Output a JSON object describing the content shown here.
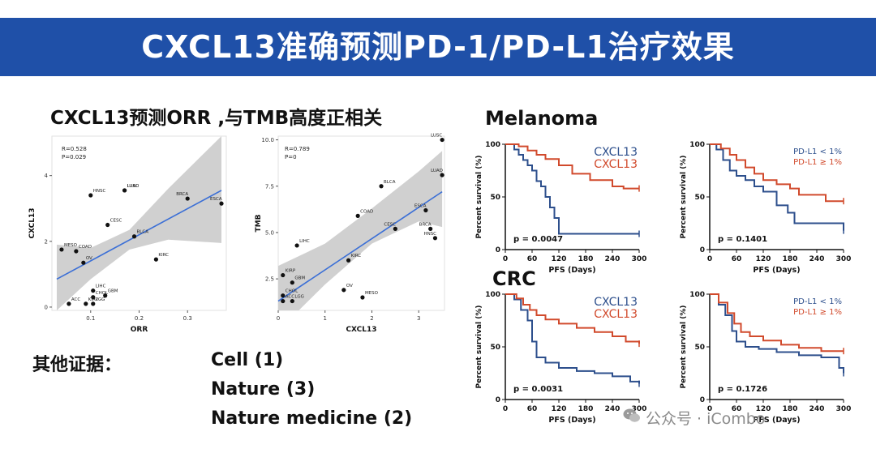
{
  "title": "CXCL13准确预测PD-1/PD-L1治疗效果",
  "subtitle": "CXCL13预测ORR ,与TMB高度正相关",
  "other_evidence": {
    "label": "其他证据：",
    "items": [
      "Cell (1)",
      "Nature (3)",
      "Nature medicine (2)"
    ]
  },
  "sections": {
    "melanoma": "Melanoma",
    "crc": "CRC"
  },
  "watermark": "公众号 · iCombo",
  "colors": {
    "banner": "#1f50a8",
    "blue": "#2d4f8c",
    "red": "#d14a2c",
    "band": "#d0d0d0",
    "fit": "#3b6fd6"
  },
  "chart_data": [
    {
      "type": "scatter",
      "xlabel": "ORR",
      "ylabel": "CXCL13",
      "xlim": [
        0.02,
        0.38
      ],
      "ylim": [
        -0.1,
        5.2
      ],
      "xticks": [
        "0.1",
        "0.2",
        "0.3"
      ],
      "xtick_values": [
        0.1,
        0.2,
        0.3
      ],
      "yticks": [
        "0",
        "2",
        "4"
      ],
      "ytick_values": [
        0,
        2,
        4
      ],
      "annotations": [
        "R=0.528",
        "P=0.029"
      ],
      "fit_line": [
        [
          0.03,
          0.85
        ],
        [
          0.37,
          3.55
        ]
      ],
      "band_upper": [
        [
          0.03,
          1.9
        ],
        [
          0.1,
          1.8
        ],
        [
          0.18,
          2.35
        ],
        [
          0.26,
          3.6
        ],
        [
          0.37,
          5.2
        ]
      ],
      "band_lower": [
        [
          0.03,
          -0.1
        ],
        [
          0.1,
          0.85
        ],
        [
          0.18,
          1.75
        ],
        [
          0.26,
          2.05
        ],
        [
          0.37,
          1.95
        ]
      ],
      "points": [
        {
          "label": "LUAD",
          "x": 0.17,
          "y": 3.55
        },
        {
          "label": "HNSC",
          "x": 0.1,
          "y": 3.4
        },
        {
          "label": "LUSC",
          "x": 0.17,
          "y": 3.55
        },
        {
          "label": "BRCA",
          "x": 0.3,
          "y": 3.3
        },
        {
          "label": "ESCA",
          "x": 0.37,
          "y": 3.15
        },
        {
          "label": "CESC",
          "x": 0.135,
          "y": 2.5
        },
        {
          "label": "MESO",
          "x": 0.04,
          "y": 1.75
        },
        {
          "label": "COAD",
          "x": 0.07,
          "y": 1.7
        },
        {
          "label": "BLCA",
          "x": 0.19,
          "y": 2.15
        },
        {
          "label": "KIRC",
          "x": 0.235,
          "y": 1.45
        },
        {
          "label": "OV",
          "x": 0.085,
          "y": 1.35
        },
        {
          "label": "LIHC",
          "x": 0.105,
          "y": 0.5
        },
        {
          "label": "GBM",
          "x": 0.13,
          "y": 0.35
        },
        {
          "label": "CHOL",
          "x": 0.105,
          "y": 0.3
        },
        {
          "label": "ACC",
          "x": 0.055,
          "y": 0.1
        },
        {
          "label": "KIRP",
          "x": 0.09,
          "y": 0.1
        },
        {
          "label": "LGG",
          "x": 0.105,
          "y": 0.1
        }
      ]
    },
    {
      "type": "scatter",
      "xlabel": "CXCL13",
      "ylabel": "TMB",
      "xlim": [
        0,
        3.55
      ],
      "ylim": [
        0.8,
        10.2
      ],
      "xticks": [
        "0",
        "1",
        "2",
        "3"
      ],
      "xtick_values": [
        0,
        1,
        2,
        3
      ],
      "yticks": [
        "2.5",
        "5.0",
        "7.5",
        "10.0"
      ],
      "ytick_values": [
        2.5,
        5.0,
        7.5,
        10.0
      ],
      "annotations": [
        "R=0.789",
        "P=0"
      ],
      "fit_line": [
        [
          0,
          1.3
        ],
        [
          3.5,
          7.2
        ]
      ],
      "band_upper": [
        [
          0,
          3.2
        ],
        [
          1.0,
          4.4
        ],
        [
          2.0,
          6.3
        ],
        [
          3.0,
          8.3
        ],
        [
          3.5,
          9.4
        ]
      ],
      "band_lower": [
        [
          0,
          -0.3
        ],
        [
          1.0,
          2.2
        ],
        [
          2.0,
          4.4
        ],
        [
          3.0,
          5.6
        ],
        [
          3.5,
          5.3
        ]
      ],
      "points": [
        {
          "label": "LUSC",
          "x": 3.5,
          "y": 10.0
        },
        {
          "label": "LUAD",
          "x": 3.5,
          "y": 8.1
        },
        {
          "label": "BLCA",
          "x": 2.2,
          "y": 7.5
        },
        {
          "label": "ESCA",
          "x": 3.15,
          "y": 6.2
        },
        {
          "label": "COAD",
          "x": 1.7,
          "y": 5.9
        },
        {
          "label": "CESC",
          "x": 2.5,
          "y": 5.2
        },
        {
          "label": "BRCA",
          "x": 3.25,
          "y": 5.2
        },
        {
          "label": "HNSC",
          "x": 3.35,
          "y": 4.7
        },
        {
          "label": "LIHC",
          "x": 0.4,
          "y": 4.3
        },
        {
          "label": "KIRP",
          "x": 0.1,
          "y": 2.7
        },
        {
          "label": "KIRC",
          "x": 1.5,
          "y": 3.5
        },
        {
          "label": "GBM",
          "x": 0.3,
          "y": 2.3
        },
        {
          "label": "OV",
          "x": 1.4,
          "y": 1.9
        },
        {
          "label": "CHOL",
          "x": 0.1,
          "y": 1.6
        },
        {
          "label": "LGG",
          "x": 0.3,
          "y": 1.3
        },
        {
          "label": "MESO",
          "x": 1.8,
          "y": 1.5
        },
        {
          "label": "ACC",
          "x": 0.1,
          "y": 1.3
        }
      ]
    },
    {
      "type": "line",
      "subtype": "kaplan-meier",
      "xlabel": "PFS (Days)",
      "ylabel": "Percent survival (%)",
      "xlim": [
        0,
        300
      ],
      "ylim": [
        0,
        100
      ],
      "xticks": [
        "0",
        "60",
        "120",
        "180",
        "240",
        "300"
      ],
      "xtick_values": [
        0,
        60,
        120,
        180,
        240,
        300
      ],
      "yticks": [
        "0",
        "50",
        "100"
      ],
      "ytick_values": [
        0,
        50,
        100
      ],
      "pvalue": "p = 0.0047",
      "legend": "top-right",
      "series": [
        {
          "name": "CXCL13",
          "color": "#2d4f8c",
          "x": [
            0,
            20,
            30,
            40,
            50,
            60,
            70,
            80,
            90,
            100,
            110,
            120,
            300
          ],
          "y": [
            100,
            95,
            90,
            85,
            80,
            75,
            65,
            60,
            50,
            40,
            30,
            15,
            15
          ]
        },
        {
          "name": "CXCL13",
          "color": "#d14a2c",
          "x": [
            0,
            30,
            50,
            70,
            90,
            120,
            150,
            190,
            240,
            265,
            300
          ],
          "y": [
            100,
            98,
            94,
            90,
            86,
            80,
            72,
            66,
            60,
            58,
            58
          ]
        }
      ]
    },
    {
      "type": "line",
      "subtype": "kaplan-meier",
      "xlabel": "PFS (Days)",
      "ylabel": "Percent survival (%)",
      "xlim": [
        0,
        300
      ],
      "ylim": [
        0,
        100
      ],
      "xticks": [
        "0",
        "60",
        "120",
        "180",
        "240",
        "300"
      ],
      "xtick_values": [
        0,
        60,
        120,
        180,
        240,
        300
      ],
      "yticks": [
        "0",
        "50",
        "100"
      ],
      "ytick_values": [
        0,
        50,
        100
      ],
      "pvalue": "p = 0.1401",
      "legend": "top-right",
      "series": [
        {
          "name": "PD-L1 < 1%",
          "color": "#2d4f8c",
          "x": [
            0,
            15,
            30,
            45,
            60,
            80,
            100,
            120,
            150,
            175,
            190,
            300
          ],
          "y": [
            100,
            95,
            85,
            75,
            70,
            66,
            60,
            55,
            42,
            35,
            25,
            18
          ]
        },
        {
          "name": "PD-L1 ≥ 1%",
          "color": "#d14a2c",
          "x": [
            0,
            25,
            45,
            60,
            80,
            100,
            120,
            150,
            180,
            200,
            260,
            300
          ],
          "y": [
            100,
            96,
            90,
            85,
            78,
            72,
            66,
            62,
            58,
            52,
            46,
            46
          ]
        }
      ]
    },
    {
      "type": "line",
      "subtype": "kaplan-meier",
      "xlabel": "PFS (Days)",
      "ylabel": "Percent survival (%)",
      "xlim": [
        0,
        300
      ],
      "ylim": [
        0,
        100
      ],
      "xticks": [
        "0",
        "60",
        "120",
        "180",
        "240",
        "300"
      ],
      "xtick_values": [
        0,
        60,
        120,
        180,
        240,
        300
      ],
      "yticks": [
        "0",
        "50",
        "100"
      ],
      "ytick_values": [
        0,
        50,
        100
      ],
      "pvalue": "p = 0.0031",
      "legend": "top-right",
      "series": [
        {
          "name": "CXCL13",
          "color": "#2d4f8c",
          "x": [
            0,
            20,
            35,
            50,
            60,
            70,
            90,
            120,
            160,
            200,
            240,
            280,
            300
          ],
          "y": [
            100,
            95,
            85,
            75,
            55,
            40,
            35,
            30,
            27,
            25,
            22,
            17,
            15
          ]
        },
        {
          "name": "CXCL13",
          "color": "#d14a2c",
          "x": [
            0,
            25,
            40,
            55,
            70,
            90,
            120,
            160,
            200,
            240,
            270,
            300
          ],
          "y": [
            100,
            96,
            90,
            85,
            80,
            76,
            72,
            68,
            64,
            60,
            55,
            53
          ]
        }
      ]
    },
    {
      "type": "line",
      "subtype": "kaplan-meier",
      "xlabel": "PFS (Days)",
      "ylabel": "Percent survival (%)",
      "xlim": [
        0,
        300
      ],
      "ylim": [
        0,
        100
      ],
      "xticks": [
        "0",
        "60",
        "120",
        "180",
        "240",
        "300"
      ],
      "xtick_values": [
        0,
        60,
        120,
        180,
        240,
        300
      ],
      "yticks": [
        "0",
        "50",
        "100"
      ],
      "ytick_values": [
        0,
        50,
        100
      ],
      "pvalue": "p = 0.1726",
      "legend": "top-right",
      "series": [
        {
          "name": "PD-L1 < 1%",
          "color": "#2d4f8c",
          "x": [
            0,
            20,
            35,
            50,
            60,
            80,
            110,
            150,
            200,
            250,
            290,
            300
          ],
          "y": [
            100,
            90,
            80,
            65,
            55,
            50,
            48,
            45,
            42,
            40,
            30,
            25
          ]
        },
        {
          "name": "PD-L1 ≥ 1%",
          "color": "#d14a2c",
          "x": [
            0,
            20,
            40,
            55,
            70,
            90,
            120,
            160,
            200,
            250,
            300
          ],
          "y": [
            100,
            92,
            82,
            72,
            64,
            60,
            56,
            52,
            49,
            46,
            46
          ]
        }
      ]
    }
  ]
}
